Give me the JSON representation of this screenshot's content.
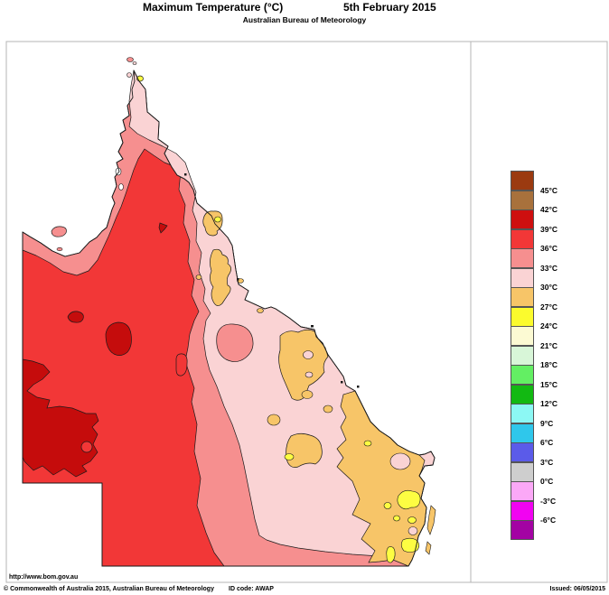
{
  "header": {
    "title": "Maximum Temperature (°C)",
    "date": "5th February 2015",
    "subtitle": "Australian Bureau of Meteorology"
  },
  "footer": {
    "url": "http://www.bom.gov.au",
    "copyright": "© Commonwealth of Australia 2015, Australian Bureau of Meteorology",
    "id_code": "ID code: AWAP",
    "issued": "Issued: 06/05/2015"
  },
  "legend": {
    "unit": "°C",
    "labels": [
      "45°C",
      "42°C",
      "39°C",
      "36°C",
      "33°C",
      "30°C",
      "27°C",
      "24°C",
      "21°C",
      "18°C",
      "15°C",
      "12°C",
      "9°C",
      "6°C",
      "3°C",
      "0°C",
      "-3°C",
      "-6°C"
    ],
    "colors": [
      "#9B3A10",
      "#A8713C",
      "#CE0F0F",
      "#F23737",
      "#F68F8F",
      "#FAD3D4",
      "#F7C568",
      "#FBFB2D",
      "#FCFAD3",
      "#D8F6D8",
      "#63EF63",
      "#12B912",
      "#8CF8F4",
      "#2FC7EB",
      "#5B5BE9",
      "#CECECE",
      "#FBA8F7",
      "#F103F1",
      "#A303A3"
    ]
  },
  "map": {
    "region": "Queensland, Australia",
    "palette": {
      "darkred39": "#C50C0C",
      "red36": "#F23737",
      "salmon33": "#F68F8F",
      "pink30": "#FAD3D4",
      "orange27": "#F7C568",
      "yellow24": "#FDFD42",
      "sea": "#FFFFFF",
      "outline": "#1a1a1a",
      "frame": "#b4b4b4"
    },
    "regions": [
      {
        "name": "far-west-and-channel-country-hotspots",
        "band": "39–42°C"
      },
      {
        "name": "western-and-central-interior",
        "band": "36–39°C"
      },
      {
        "name": "gulf-coast-and-mid-band",
        "band": "33–36°C"
      },
      {
        "name": "cape-york-and-eastern-inland",
        "band": "30–33°C"
      },
      {
        "name": "east-coast-and-southeast",
        "band": "27–30°C"
      },
      {
        "name": "southeast-highland-patches",
        "band": "24–27°C"
      }
    ]
  }
}
